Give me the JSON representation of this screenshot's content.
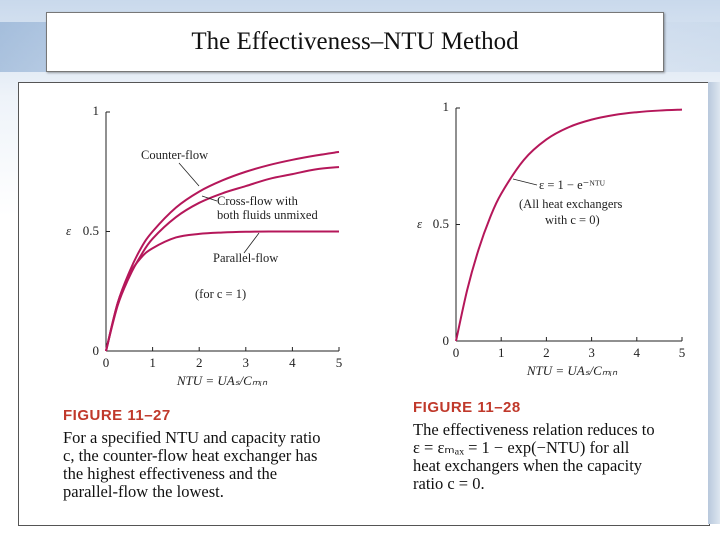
{
  "slide": {
    "title": "The Effectiveness–NTU Method"
  },
  "chart_data": [
    {
      "type": "line",
      "figure_label": "FIGURE 11–27",
      "caption_lines": [
        "For a specified NTU and capacity ratio",
        "c, the counter-flow heat exchanger has",
        "the highest effectiveness and the",
        "parallel-flow the lowest."
      ],
      "xlabel": "NTU = UAₛ/Cₘᵢₙ",
      "ylabel": "ε",
      "xlim": [
        0,
        5
      ],
      "ylim": [
        0,
        1
      ],
      "x_ticks": [
        "0",
        "1",
        "2",
        "3",
        "4",
        "5"
      ],
      "y_ticks": [
        {
          "value": 0,
          "label": "0"
        },
        {
          "value": 0.5,
          "label": "0.5"
        },
        {
          "value": 1,
          "label": "1"
        }
      ],
      "series": [
        {
          "name": "Counter-flow",
          "x": [
            0,
            0.25,
            0.5,
            0.75,
            1,
            1.5,
            2,
            2.5,
            3,
            3.5,
            4,
            4.5,
            5
          ],
          "y": [
            0,
            0.2,
            0.33,
            0.43,
            0.5,
            0.6,
            0.667,
            0.714,
            0.75,
            0.778,
            0.8,
            0.818,
            0.833
          ]
        },
        {
          "name": "Cross-flow with both fluids unmixed",
          "x": [
            0,
            0.25,
            0.5,
            0.75,
            1,
            1.5,
            2,
            2.5,
            3,
            3.5,
            4,
            4.5,
            5
          ],
          "y": [
            0,
            0.19,
            0.31,
            0.4,
            0.47,
            0.56,
            0.62,
            0.66,
            0.69,
            0.72,
            0.74,
            0.76,
            0.77
          ]
        },
        {
          "name": "Parallel-flow",
          "x": [
            0,
            0.25,
            0.5,
            0.75,
            1,
            1.5,
            2,
            2.5,
            3,
            3.5,
            4,
            4.5,
            5
          ],
          "y": [
            0,
            0.2,
            0.32,
            0.39,
            0.43,
            0.475,
            0.49,
            0.496,
            0.499,
            0.5,
            0.5,
            0.5,
            0.5
          ]
        }
      ],
      "annotations": [
        "Counter-flow",
        "Cross-flow with",
        "both fluids unmixed",
        "Parallel-flow",
        "(for c = 1)"
      ]
    },
    {
      "type": "line",
      "figure_label": "FIGURE 11–28",
      "caption_lines": [
        "The effectiveness relation reduces to",
        "ε = εₘₐₓ = 1 − exp(−NTU) for all",
        "heat exchangers when the capacity",
        "ratio c = 0."
      ],
      "xlabel": "NTU = UAₛ/Cₘᵢₙ",
      "ylabel": "ε",
      "xlim": [
        0,
        5
      ],
      "ylim": [
        0,
        1
      ],
      "x_ticks": [
        "0",
        "1",
        "2",
        "3",
        "4",
        "5"
      ],
      "y_ticks": [
        {
          "value": 0,
          "label": "0"
        },
        {
          "value": 0.5,
          "label": "0.5"
        },
        {
          "value": 1,
          "label": "1"
        }
      ],
      "series": [
        {
          "name": "ε = 1 − e^−NTU",
          "x": [
            0,
            0.25,
            0.5,
            0.75,
            1,
            1.5,
            2,
            2.5,
            3,
            3.5,
            4,
            4.5,
            5
          ],
          "y": [
            0,
            0.221,
            0.393,
            0.528,
            0.632,
            0.777,
            0.865,
            0.918,
            0.95,
            0.97,
            0.982,
            0.989,
            0.993
          ]
        }
      ],
      "annotations": [
        "ε = 1 − e⁻ᴺᵀᵁ",
        "(All heat exchangers",
        "with c = 0)"
      ]
    }
  ],
  "colors": {
    "curve": "#b5175a",
    "caption_label": "#c0392b",
    "axis": "#222222"
  }
}
